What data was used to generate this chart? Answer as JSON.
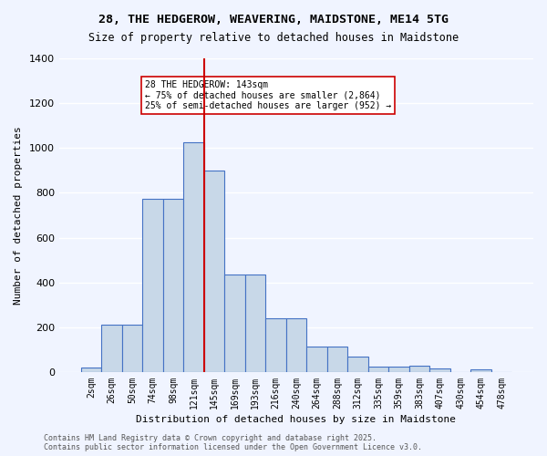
{
  "title_line1": "28, THE HEDGEROW, WEAVERING, MAIDSTONE, ME14 5TG",
  "title_line2": "Size of property relative to detached houses in Maidstone",
  "xlabel": "Distribution of detached houses by size in Maidstone",
  "ylabel": "Number of detached properties",
  "categories": [
    "2sqm",
    "26sqm",
    "50sqm",
    "74sqm",
    "98sqm",
    "121sqm",
    "145sqm",
    "169sqm",
    "193sqm",
    "216sqm",
    "240sqm",
    "264sqm",
    "288sqm",
    "312sqm",
    "335sqm",
    "359sqm",
    "383sqm",
    "407sqm",
    "430sqm",
    "454sqm",
    "478sqm"
  ],
  "values": [
    20,
    210,
    210,
    775,
    775,
    1025,
    900,
    435,
    435,
    240,
    240,
    115,
    115,
    70,
    25,
    25,
    30,
    15,
    0,
    10,
    0
  ],
  "bar_color": "#c8d8e8",
  "bar_edge_color": "#4472c4",
  "vline_x": 6,
  "vline_color": "#cc0000",
  "annotation_text": "28 THE HEDGEROW: 143sqm\n← 75% of detached houses are smaller (2,864)\n25% of semi-detached houses are larger (952) →",
  "annotation_box_color": "#ffffff",
  "annotation_box_edge_color": "#cc0000",
  "background_color": "#f0f4ff",
  "grid_color": "#ffffff",
  "footer_text": "Contains HM Land Registry data © Crown copyright and database right 2025.\nContains public sector information licensed under the Open Government Licence v3.0.",
  "ylim": [
    0,
    1400
  ],
  "yticks": [
    0,
    200,
    400,
    600,
    800,
    1000,
    1200,
    1400
  ]
}
